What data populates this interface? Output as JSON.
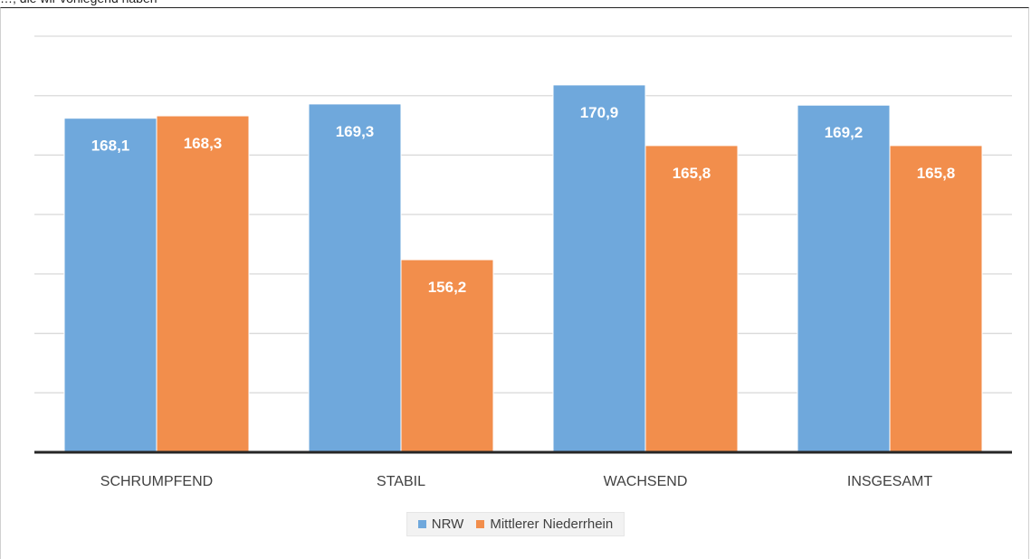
{
  "header": {
    "cut_text": "…, die wir vorliegend haben"
  },
  "chart_data": {
    "type": "bar",
    "categories": [
      "SCHRUMPFEND",
      "STABIL",
      "WACHSEND",
      "INSGESAMT"
    ],
    "series": [
      {
        "name": "NRW",
        "values": [
          168.1,
          169.3,
          170.9,
          169.2
        ],
        "labels": [
          "168,1",
          "169,3",
          "170,9",
          "169,2"
        ],
        "color": "#6fa8dc"
      },
      {
        "name": "Mittlerer Niederrhein",
        "values": [
          168.3,
          156.2,
          165.8,
          165.8
        ],
        "labels": [
          "168,3",
          "156,2",
          "165,8",
          "165,8"
        ],
        "color": "#f28e4c"
      }
    ],
    "ylim": [
      140,
      175
    ],
    "grid": true,
    "legend": "bottom"
  }
}
